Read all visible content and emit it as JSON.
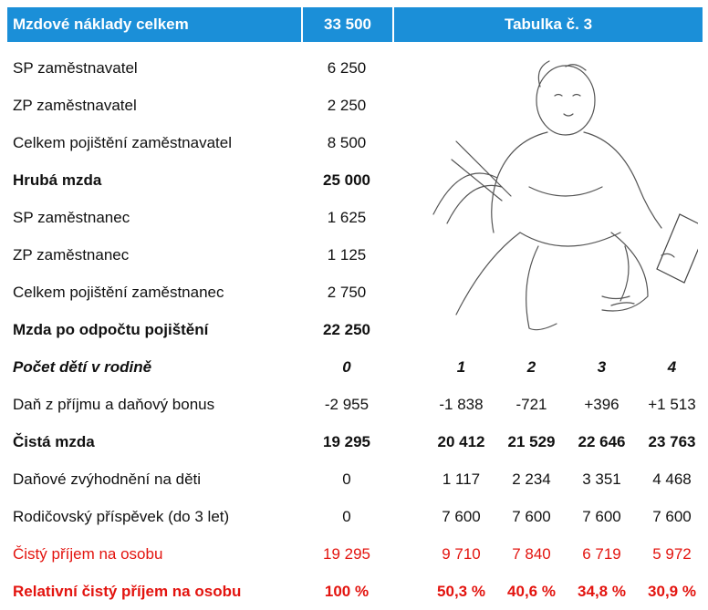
{
  "header": {
    "title": "Mzdové náklady celkem",
    "total": "33 500",
    "table_label": "Tabulka č. 3"
  },
  "rows": [
    {
      "label": "SP zaměstnavatel",
      "values": [
        "6 250"
      ]
    },
    {
      "label": "ZP zaměstnavatel",
      "values": [
        "2 250"
      ]
    },
    {
      "label": "Celkem pojištění zaměstnavatel",
      "values": [
        "8 500"
      ]
    },
    {
      "label": "Hrubá mzda",
      "values": [
        "25 000"
      ],
      "style": "bold"
    },
    {
      "label": "SP zaměstnanec",
      "values": [
        "1 625"
      ]
    },
    {
      "label": "ZP zaměstnanec",
      "values": [
        "1 125"
      ]
    },
    {
      "label": "Celkem pojištění zaměstnanec",
      "values": [
        "2 750"
      ]
    },
    {
      "label": "Mzda po odpočtu pojištění",
      "values": [
        "22 250"
      ],
      "style": "bold"
    },
    {
      "label": "Počet dětí v rodině",
      "values": [
        "0",
        "1",
        "2",
        "3",
        "4"
      ],
      "style": "bolditalic"
    },
    {
      "label": "Daň z příjmu a daňový bonus",
      "values": [
        "-2 955",
        "-1 838",
        "-721",
        "+396",
        "+1 513"
      ]
    },
    {
      "label": "Čistá mzda",
      "values": [
        "19 295",
        "20 412",
        "21 529",
        "22 646",
        "23 763"
      ],
      "style": "bold"
    },
    {
      "label": "Daňové zvýhodnění na děti",
      "values": [
        "0",
        "1 117",
        "2 234",
        "3 351",
        "4 468"
      ]
    },
    {
      "label": "Rodičovský příspěvek (do 3 let)",
      "values": [
        "0",
        "7 600",
        "7 600",
        "7 600",
        "7 600"
      ]
    },
    {
      "label": "Čistý příjem na osobu",
      "values": [
        "19 295",
        "9 710",
        "7 840",
        "6 719",
        "5 972"
      ],
      "style": "red"
    },
    {
      "label": "Relativní čistý příjem na osobu",
      "values": [
        "100 %",
        "50,3 %",
        "40,6 %",
        "34,8 %",
        "30,9 %"
      ],
      "style": "redbold"
    }
  ]
}
